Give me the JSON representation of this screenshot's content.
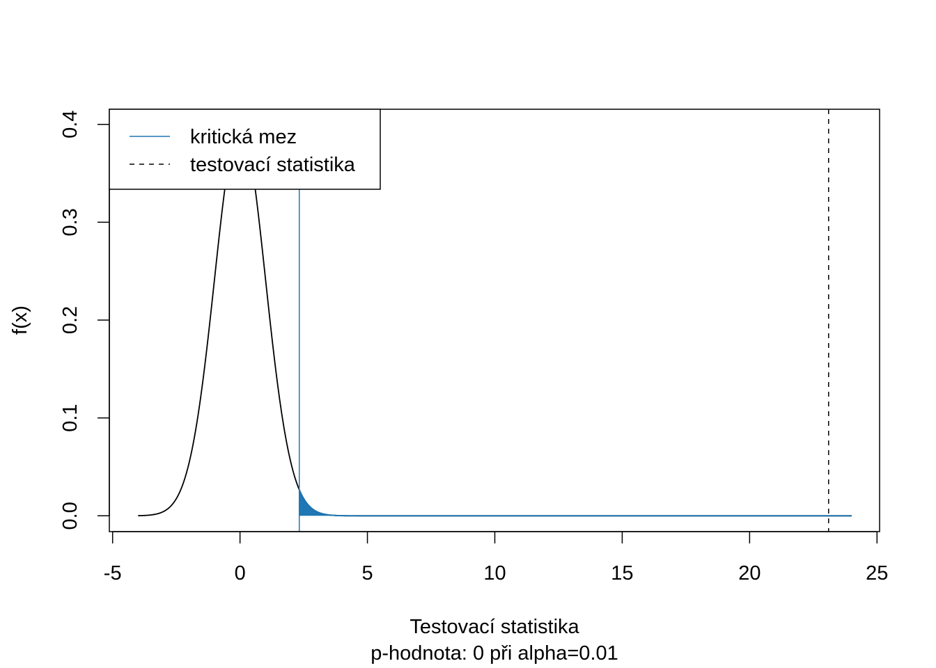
{
  "chart_data": {
    "type": "line",
    "title": "",
    "xlabel": "Testovací statistika",
    "subtitle": "p-hodnota: 0 při alpha=0.01",
    "ylabel": "f(x)",
    "xlim": [
      -5,
      25
    ],
    "ylim": [
      0,
      0.4
    ],
    "x_ticks": [
      -5,
      0,
      5,
      10,
      15,
      20,
      25
    ],
    "y_ticks": [
      0.0,
      0.1,
      0.2,
      0.3,
      0.4
    ],
    "x_tick_labels": [
      "-5",
      "0",
      "5",
      "10",
      "15",
      "20",
      "25"
    ],
    "y_tick_labels": [
      "0.0",
      "0.1",
      "0.2",
      "0.3",
      "0.4"
    ],
    "grid": false,
    "legend_placement": "top-left",
    "density": {
      "distribution": "standard normal",
      "x_range": [
        -4,
        24
      ],
      "color": "#000000"
    },
    "critical_value": {
      "name": "kritická mez",
      "x": 2.326,
      "color": "#1f77b4",
      "line_style": "solid"
    },
    "test_statistic": {
      "name": "testovací statistika",
      "x": 23.1,
      "color": "#000000",
      "line_style": "dashed"
    },
    "rejection_region": {
      "from": 2.326,
      "to": 24,
      "fill": "#1f77b4"
    },
    "series": [
      {
        "name": "kritická mez",
        "color": "#1f77b4",
        "line_style": "solid"
      },
      {
        "name": "testovací statistika",
        "color": "#000000",
        "line_style": "dashed"
      }
    ]
  }
}
